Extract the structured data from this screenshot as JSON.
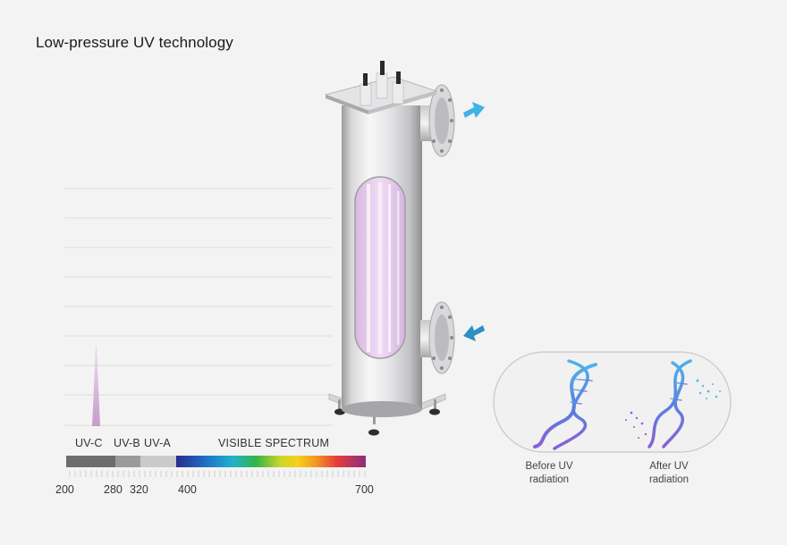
{
  "title": "Low-pressure UV technology",
  "spectrum": {
    "bands": [
      {
        "label": "UV-C",
        "from": 200,
        "to": 280,
        "color": "#6d6d70"
      },
      {
        "label": "UV-B",
        "from": 280,
        "to": 320,
        "color": "#9b9b9e"
      },
      {
        "label": "UV-A",
        "from": 320,
        "to": 400,
        "color": "#cacaca"
      },
      {
        "label": "VISIBLE SPECTRUM",
        "from": 400,
        "to": 700,
        "color": "spectrum"
      }
    ],
    "ticks": [
      "200",
      "280",
      "320",
      "400",
      "700"
    ],
    "peak_wavelength": 254
  },
  "dna": {
    "before_label_line1": "Before UV",
    "before_label_line2": "radiation",
    "after_label_line1": "After UV",
    "after_label_line2": "radiation"
  },
  "colors": {
    "arrow_out": "#3fb2e6",
    "arrow_in": "#2b8fc0",
    "lamp_glow": "#e6c9ec",
    "peak": "#cfa9cf"
  }
}
